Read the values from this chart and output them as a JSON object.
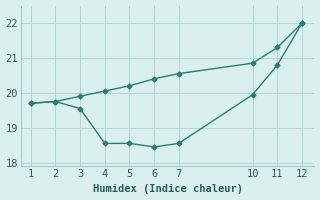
{
  "line1_x": [
    1,
    2,
    3,
    4,
    5,
    6,
    7,
    10,
    11,
    12
  ],
  "line1_y": [
    19.7,
    19.75,
    19.9,
    20.05,
    20.2,
    20.4,
    20.55,
    20.85,
    21.3,
    22.0
  ],
  "line2_x": [
    1,
    2,
    3,
    4,
    5,
    6,
    7,
    10,
    11,
    12
  ],
  "line2_y": [
    19.7,
    19.75,
    19.55,
    18.55,
    18.55,
    18.45,
    18.55,
    19.95,
    20.8,
    22.0
  ],
  "line_color": "#2e7d6e",
  "bg_color": "#daf0ee",
  "grid_color": "#b0d8d4",
  "xlabel": "Humidex (Indice chaleur)",
  "ylim": [
    17.9,
    22.5
  ],
  "xlim": [
    0.6,
    12.5
  ],
  "yticks": [
    18,
    19,
    20,
    21,
    22
  ],
  "xticks": [
    1,
    2,
    3,
    4,
    5,
    6,
    7,
    10,
    11,
    12
  ],
  "marker": "D",
  "marker_size": 2.5,
  "linewidth": 1.0,
  "xlabel_fontsize": 7.5,
  "tick_fontsize": 7.5
}
